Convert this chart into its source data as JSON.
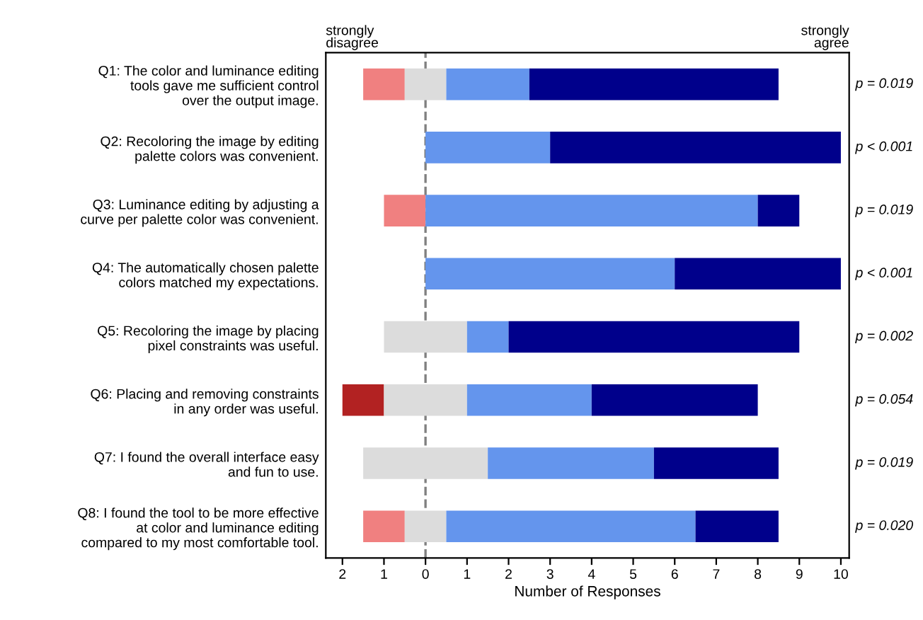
{
  "chart_data": {
    "type": "bar",
    "orientation": "horizontal",
    "categories": [
      "Q1: The color and luminance editing\ntools gave me sufficient control\nover the output image.",
      "Q2: Recoloring the image by editing\npalette colors was convenient.",
      "Q3: Luminance editing by adjusting a\ncurve per palette color was convenient.",
      "Q4: The automatically chosen palette\ncolors matched my expectations.",
      "Q5: Recoloring the image by placing\npixel constraints was useful.",
      "Q6: Placing and removing constraints\nin any order was useful.",
      "Q7: I found the overall interface easy\nand fun to use.",
      "Q8: I found the tool to be more effective\nat color and luminance editing\ncompared to my most comfortable tool."
    ],
    "series": [
      {
        "color": "#b22222",
        "values": [
          null,
          null,
          null,
          null,
          null,
          1,
          null,
          null
        ],
        "base": [
          null,
          null,
          null,
          null,
          null,
          -2,
          null,
          null
        ]
      },
      {
        "color": "#f08080",
        "values": [
          1,
          null,
          1,
          null,
          null,
          null,
          null,
          1
        ],
        "base": [
          -1.5,
          null,
          -1,
          null,
          null,
          null,
          null,
          -1.5
        ]
      },
      {
        "color": "#dcdcdc",
        "values": [
          1,
          null,
          null,
          null,
          2,
          2,
          3,
          1
        ],
        "base": [
          -0.5,
          null,
          null,
          null,
          -1,
          -1,
          -1.5,
          -0.5
        ]
      },
      {
        "color": "#6495ed",
        "values": [
          2,
          3,
          8,
          6,
          1,
          3,
          4,
          6
        ],
        "base": [
          0.5,
          0,
          0,
          0,
          1,
          1,
          1.5,
          0.5
        ]
      },
      {
        "color": "#00008b",
        "values": [
          6,
          7,
          1,
          4,
          7,
          4,
          3,
          2
        ],
        "base": [
          2.5,
          3,
          8,
          6,
          2,
          4,
          5.5,
          6.5
        ]
      }
    ],
    "xlabel": "Number of Responses",
    "xlim": [
      -2.4,
      10.2
    ],
    "xticks": [
      {
        "value": -2,
        "label": "2"
      },
      {
        "value": -1,
        "label": "1"
      },
      0,
      1,
      2,
      3,
      4,
      5,
      6,
      7,
      8,
      9,
      10
    ],
    "ref_lines": [
      {
        "axis": "x",
        "value": 0,
        "color": "#808080",
        "line_style": "dashed"
      }
    ],
    "annotations": [
      "strongly\ndisagree",
      "strongly\nagree",
      "p = 0.019",
      "p < 0.001",
      "p = 0.019",
      "p < 0.001",
      "p = 0.002",
      "p = 0.054",
      "p = 0.019",
      "p = 0.020"
    ],
    "grid": false
  }
}
